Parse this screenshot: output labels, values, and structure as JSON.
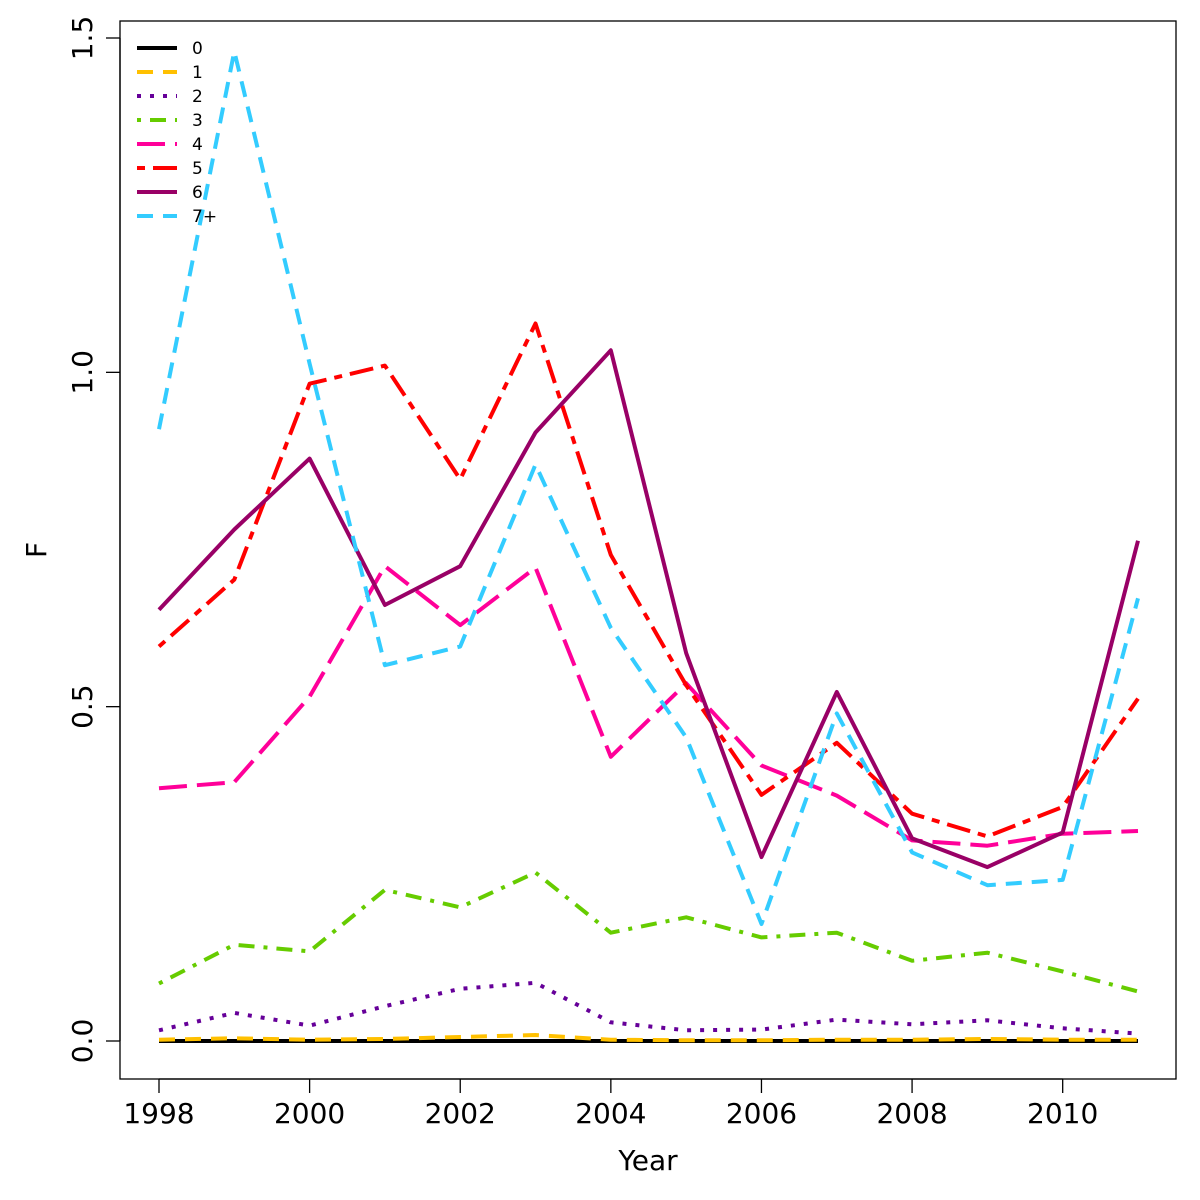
{
  "chart_data": {
    "type": "line",
    "title": "",
    "xlabel": "Year",
    "ylabel": "F",
    "xlim": [
      1998,
      2011
    ],
    "ylim": [
      0.0,
      1.5
    ],
    "x_ticks": [
      {
        "value": 1998,
        "label": "1998"
      },
      {
        "value": 2000,
        "label": "2000"
      },
      {
        "value": 2002,
        "label": "2002"
      },
      {
        "value": 2004,
        "label": "2004"
      },
      {
        "value": 2006,
        "label": "2006"
      },
      {
        "value": 2008,
        "label": "2008"
      },
      {
        "value": 2010,
        "label": "2010"
      }
    ],
    "y_ticks": [
      {
        "value": 0.0,
        "label": "0.0"
      },
      {
        "value": 0.5,
        "label": "0.5"
      },
      {
        "value": 1.0,
        "label": "1.0"
      },
      {
        "value": 1.5,
        "label": "1.5"
      }
    ],
    "grid": false,
    "legend_position": "top-left",
    "x": [
      1998,
      1999,
      2000,
      2001,
      2002,
      2003,
      2004,
      2005,
      2006,
      2007,
      2008,
      2009,
      2010,
      2011
    ],
    "series": [
      {
        "name": "0",
        "color": "#000000",
        "dash": "solid",
        "values": [
          0.0,
          0.0,
          0.0,
          0.0,
          0.0,
          0.0,
          0.0,
          0.0,
          0.0,
          0.0,
          0.0,
          0.0,
          0.0,
          0.0
        ]
      },
      {
        "name": "1",
        "color": "#FFC000",
        "dash": "dashed",
        "values": [
          0.002,
          0.004,
          0.002,
          0.003,
          0.006,
          0.009,
          0.002,
          0.001,
          0.001,
          0.002,
          0.002,
          0.003,
          0.002,
          0.002
        ]
      },
      {
        "name": "2",
        "color": "#660099",
        "dash": "dotted",
        "values": [
          0.016,
          0.042,
          0.023,
          0.052,
          0.078,
          0.087,
          0.028,
          0.016,
          0.017,
          0.032,
          0.025,
          0.031,
          0.019,
          0.011
        ]
      },
      {
        "name": "3",
        "color": "#66CC00",
        "dash": "dotdash",
        "values": [
          0.086,
          0.144,
          0.134,
          0.226,
          0.2,
          0.252,
          0.162,
          0.185,
          0.155,
          0.162,
          0.12,
          0.132,
          0.104,
          0.074
        ]
      },
      {
        "name": "4",
        "color": "#FF0099",
        "dash": "longdash",
        "values": [
          0.378,
          0.387,
          0.515,
          0.71,
          0.622,
          0.708,
          0.425,
          0.535,
          0.412,
          0.367,
          0.3,
          0.292,
          0.31,
          0.314
        ]
      },
      {
        "name": "5",
        "color": "#FF0000",
        "dash": "twodash",
        "values": [
          0.59,
          0.69,
          0.983,
          1.01,
          0.84,
          1.073,
          0.727,
          0.532,
          0.368,
          0.446,
          0.34,
          0.306,
          0.35,
          0.512
        ]
      },
      {
        "name": "6",
        "color": "#990066",
        "dash": "solid",
        "values": [
          0.645,
          0.765,
          0.871,
          0.652,
          0.71,
          0.91,
          1.033,
          0.58,
          0.275,
          0.522,
          0.303,
          0.26,
          0.312,
          0.748
        ]
      },
      {
        "name": "7+",
        "color": "#33CCFF",
        "dash": "dashed",
        "values": [
          0.915,
          1.48,
          1.013,
          0.562,
          0.59,
          0.862,
          0.618,
          0.454,
          0.175,
          0.49,
          0.282,
          0.233,
          0.241,
          0.662
        ]
      }
    ]
  }
}
